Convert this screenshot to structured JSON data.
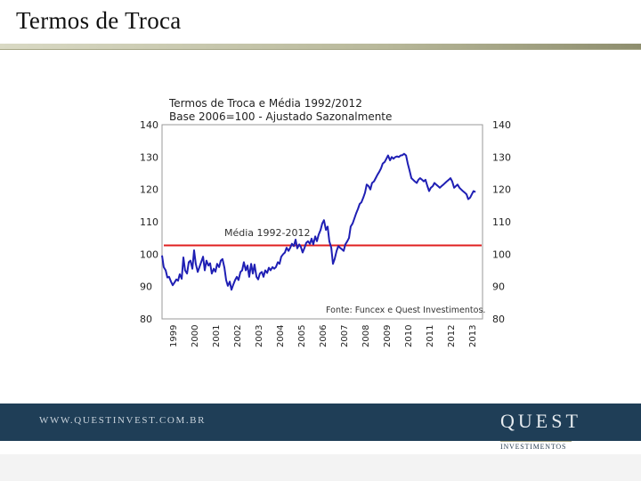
{
  "slide": {
    "title": "Termos de Troca",
    "footer_url": "WWW.QUESTINVEST.COM.BR",
    "brand": "QUEST",
    "brand_sub": "INVESTIMENTOS"
  },
  "colors": {
    "series": "#1f1fb4",
    "average": "#e02020",
    "footer": "#1f3e57"
  },
  "chart_data": {
    "type": "line",
    "title": "Termos de Troca e Média 1992/2012",
    "subtitle": "Base 2006=100 - Ajustado Sazonalmente",
    "source": "Fonte: Funcex e Quest Investimentos.",
    "ylim": [
      80,
      140
    ],
    "yticks": [
      80,
      90,
      100,
      110,
      120,
      130,
      140
    ],
    "xlim": [
      1999,
      2014
    ],
    "xticks": [
      "1999",
      "2000",
      "2001",
      "2002",
      "2003",
      "2004",
      "2005",
      "2006",
      "2007",
      "2008",
      "2009",
      "2010",
      "2011",
      "2012",
      "2013"
    ],
    "grid": false,
    "average": {
      "label": "Média 1992-2012",
      "value": 102.7
    },
    "series": [
      {
        "x": [
          1999.0,
          1999.08,
          1999.17,
          1999.25,
          1999.33,
          1999.42,
          1999.5,
          1999.58,
          1999.67,
          1999.75,
          1999.83,
          1999.92,
          2000.0,
          2000.08,
          2000.17,
          2000.25,
          2000.33,
          2000.42,
          2000.5,
          2000.58,
          2000.67,
          2000.75,
          2000.83,
          2000.92,
          2001.0,
          2001.08,
          2001.17,
          2001.25,
          2001.33,
          2001.42,
          2001.5,
          2001.58,
          2001.67,
          2001.75,
          2001.83,
          2001.92,
          2002.0,
          2002.08,
          2002.17,
          2002.25,
          2002.33,
          2002.42,
          2002.5,
          2002.58,
          2002.67,
          2002.75,
          2002.83,
          2002.92,
          2003.0,
          2003.08,
          2003.17,
          2003.25,
          2003.33,
          2003.42,
          2003.5,
          2003.58,
          2003.67,
          2003.75,
          2003.83,
          2003.92,
          2004.0,
          2004.08,
          2004.17,
          2004.25,
          2004.33,
          2004.42,
          2004.5,
          2004.58,
          2004.67,
          2004.75,
          2004.83,
          2004.92,
          2005.0,
          2005.08,
          2005.17,
          2005.25,
          2005.33,
          2005.42,
          2005.5,
          2005.58,
          2005.67,
          2005.75,
          2005.83,
          2005.92,
          2006.0,
          2006.08,
          2006.17,
          2006.25,
          2006.33,
          2006.42,
          2006.5,
          2006.58,
          2006.67,
          2006.75,
          2006.83,
          2006.92,
          2007.0,
          2007.08,
          2007.17,
          2007.25,
          2007.33,
          2007.42,
          2007.5,
          2007.58,
          2007.67,
          2007.75,
          2007.83,
          2007.92,
          2008.0,
          2008.08,
          2008.17,
          2008.25,
          2008.33,
          2008.42,
          2008.5,
          2008.58,
          2008.67,
          2008.75,
          2008.83,
          2008.92,
          2009.0,
          2009.08,
          2009.17,
          2009.25,
          2009.33,
          2009.42,
          2009.5,
          2009.58,
          2009.67,
          2009.75,
          2009.83,
          2009.92,
          2010.0,
          2010.08,
          2010.17,
          2010.25,
          2010.33,
          2010.42,
          2010.5,
          2010.58,
          2010.67,
          2010.75,
          2010.83,
          2010.92,
          2011.0,
          2011.08,
          2011.17,
          2011.25,
          2011.33,
          2011.42,
          2011.5,
          2011.58,
          2011.67,
          2011.75,
          2011.83,
          2011.92,
          2012.0,
          2012.08,
          2012.17,
          2012.25,
          2012.33,
          2012.42,
          2012.5,
          2012.58,
          2012.67,
          2012.75,
          2012.83,
          2012.92,
          2013.0,
          2013.08,
          2013.17,
          2013.25,
          2013.33,
          2013.42,
          2013.5,
          2013.58,
          2013.67
        ],
        "y": [
          99.6,
          96.0,
          95.0,
          92.8,
          93.0,
          91.5,
          90.4,
          91.2,
          92.2,
          91.8,
          93.8,
          92.4,
          99.0,
          95.0,
          94.0,
          97.5,
          98.0,
          95.5,
          101.2,
          97.0,
          94.5,
          96.0,
          97.5,
          99.2,
          95.0,
          98.0,
          96.5,
          97.2,
          94.0,
          95.5,
          94.6,
          97.0,
          96.0,
          98.0,
          98.5,
          95.8,
          92.0,
          90.2,
          91.5,
          89.0,
          90.5,
          92.0,
          93.0,
          92.0,
          94.5,
          95.0,
          97.5,
          95.0,
          96.5,
          93.0,
          97.0,
          94.0,
          96.8,
          93.0,
          92.2,
          94.0,
          94.5,
          93.0,
          95.0,
          94.2,
          95.8,
          95.0,
          96.0,
          95.5,
          96.0,
          97.5,
          97.0,
          99.2,
          100.0,
          100.5,
          102.0,
          101.0,
          102.0,
          103.2,
          102.5,
          104.5,
          101.8,
          103.0,
          102.2,
          100.5,
          102.0,
          103.5,
          104.0,
          103.2,
          104.8,
          103.0,
          105.5,
          104.0,
          106.0,
          107.5,
          109.5,
          110.5,
          107.5,
          108.5,
          104.0,
          102.0,
          97.0,
          98.5,
          101.0,
          102.5,
          102.0,
          101.5,
          101.0,
          103.0,
          104.0,
          105.0,
          108.5,
          109.5,
          111.0,
          112.5,
          114.0,
          115.5,
          116.0,
          117.5,
          119.0,
          121.5,
          121.0,
          120.0,
          122.0,
          122.5,
          123.5,
          124.5,
          125.5,
          126.5,
          128.0,
          128.5,
          129.5,
          130.5,
          129.0,
          130.0,
          129.5,
          130.0,
          130.2,
          130.0,
          130.5,
          130.6,
          131.0,
          130.5,
          128.0,
          126.0,
          123.5,
          123.0,
          122.5,
          122.0,
          123.0,
          123.5,
          123.0,
          122.5,
          123.0,
          121.0,
          119.5,
          120.5,
          121.0,
          122.0,
          121.5,
          121.0,
          120.5,
          121.0,
          121.5,
          122.0,
          122.5,
          123.0,
          123.5,
          122.5,
          120.5,
          121.0,
          121.5,
          120.5,
          120.0,
          119.5,
          119.0,
          118.5,
          117.0,
          117.5,
          118.5,
          119.5,
          119.2
        ]
      }
    ]
  }
}
